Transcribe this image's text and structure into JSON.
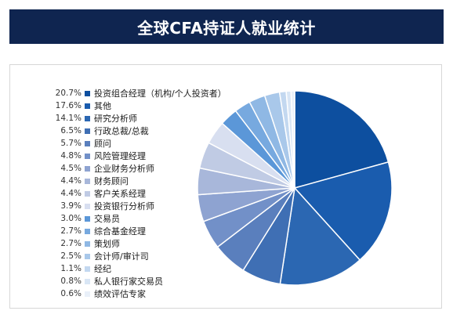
{
  "title": "全球CFA持证人就业统计",
  "chart_data": {
    "type": "pie",
    "title": "全球CFA持证人就业统计",
    "legend_position": "left",
    "slices": [
      {
        "label": "投资组合经理（机构/个人投资者）",
        "pct_text": "20.7%",
        "value": 20.7,
        "color": "#0d4f9f"
      },
      {
        "label": "其他",
        "pct_text": "17.6%",
        "value": 17.6,
        "color": "#1a5cae"
      },
      {
        "label": "研究分析师",
        "pct_text": "14.1%",
        "value": 14.1,
        "color": "#2b67b2"
      },
      {
        "label": "行政总裁/总裁",
        "pct_text": "6.5%",
        "value": 6.5,
        "color": "#3f6fb4"
      },
      {
        "label": "顾问",
        "pct_text": "5.7%",
        "value": 5.7,
        "color": "#5a7fbd"
      },
      {
        "label": "风险管理经理",
        "pct_text": "4.8%",
        "value": 4.8,
        "color": "#7290c8"
      },
      {
        "label": "企业财务分析师",
        "pct_text": "4.5%",
        "value": 4.5,
        "color": "#8ea3d1"
      },
      {
        "label": "财务顾问",
        "pct_text": "4.4%",
        "value": 4.4,
        "color": "#a8b7da"
      },
      {
        "label": "客户关系经理",
        "pct_text": "4.4%",
        "value": 4.4,
        "color": "#c0cbe4"
      },
      {
        "label": "投资银行分析师",
        "pct_text": "3.9%",
        "value": 3.9,
        "color": "#d8dff0"
      },
      {
        "label": "交易员",
        "pct_text": "3.0%",
        "value": 3.0,
        "color": "#5b97d8"
      },
      {
        "label": "综合基金经理",
        "pct_text": "2.7%",
        "value": 2.7,
        "color": "#77a9df"
      },
      {
        "label": "策划师",
        "pct_text": "2.7%",
        "value": 2.7,
        "color": "#8fb8e4"
      },
      {
        "label": "会计师/审计司",
        "pct_text": "2.5%",
        "value": 2.5,
        "color": "#a9c8ea"
      },
      {
        "label": "经纪",
        "pct_text": "1.1%",
        "value": 1.1,
        "color": "#c3d8f0"
      },
      {
        "label": "私人银行家交易员",
        "pct_text": "0.8%",
        "value": 0.8,
        "color": "#d9e6f5"
      },
      {
        "label": "绩效评估专家",
        "pct_text": "0.6%",
        "value": 0.6,
        "color": "#e9f0f9"
      }
    ]
  }
}
